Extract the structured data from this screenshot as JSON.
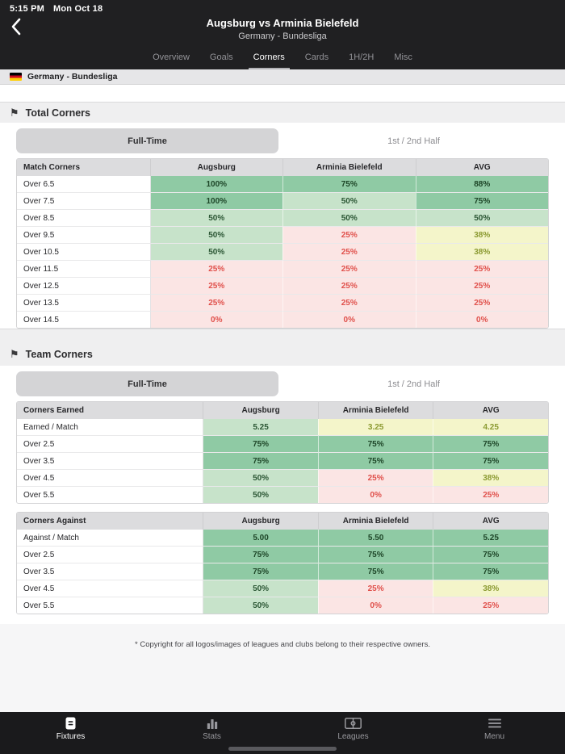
{
  "status_bar": {
    "time": "5:15 PM",
    "date": "Mon Oct 18"
  },
  "header": {
    "title": "Augsburg vs Arminia Bielefeld",
    "subtitle": "Germany - Bundesliga",
    "back_icon": "chevron-left-icon",
    "tabs": [
      {
        "label": "Overview",
        "active": false
      },
      {
        "label": "Goals",
        "active": false
      },
      {
        "label": "Corners",
        "active": true
      },
      {
        "label": "Cards",
        "active": false
      },
      {
        "label": "1H/2H",
        "active": false
      },
      {
        "label": "Misc",
        "active": false
      }
    ]
  },
  "league_bar": {
    "flag_icon": "germany-flag-icon",
    "label": "Germany - Bundesliga"
  },
  "sections": [
    {
      "title": "Total Corners",
      "icon": "flag-icon",
      "toggle": {
        "active_label": "Full-Time",
        "inactive_label": "1st / 2nd Half"
      },
      "tables": [
        {
          "label_col_width": "25%",
          "header": [
            "Match Corners",
            "Augsburg",
            "Arminia Bielefeld",
            "AVG"
          ],
          "rows": [
            {
              "label": "Over 6.5",
              "cells": [
                {
                  "v": "100%",
                  "t": "green"
                },
                {
                  "v": "75%",
                  "t": "green"
                },
                {
                  "v": "88%",
                  "t": "green"
                }
              ]
            },
            {
              "label": "Over 7.5",
              "cells": [
                {
                  "v": "100%",
                  "t": "green"
                },
                {
                  "v": "50%",
                  "t": "lgreen"
                },
                {
                  "v": "75%",
                  "t": "green"
                }
              ]
            },
            {
              "label": "Over 8.5",
              "cells": [
                {
                  "v": "50%",
                  "t": "lgreen"
                },
                {
                  "v": "50%",
                  "t": "lgreen"
                },
                {
                  "v": "50%",
                  "t": "lgreen"
                }
              ]
            },
            {
              "label": "Over 9.5",
              "cells": [
                {
                  "v": "50%",
                  "t": "lgreen"
                },
                {
                  "v": "25%",
                  "t": "pink"
                },
                {
                  "v": "38%",
                  "t": "yellow"
                }
              ]
            },
            {
              "label": "Over 10.5",
              "cells": [
                {
                  "v": "50%",
                  "t": "lgreen"
                },
                {
                  "v": "25%",
                  "t": "pink"
                },
                {
                  "v": "38%",
                  "t": "yellow"
                }
              ]
            },
            {
              "label": "Over 11.5",
              "cells": [
                {
                  "v": "25%",
                  "t": "pink"
                },
                {
                  "v": "25%",
                  "t": "pink"
                },
                {
                  "v": "25%",
                  "t": "pink"
                }
              ]
            },
            {
              "label": "Over 12.5",
              "cells": [
                {
                  "v": "25%",
                  "t": "pink"
                },
                {
                  "v": "25%",
                  "t": "pink"
                },
                {
                  "v": "25%",
                  "t": "pink"
                }
              ]
            },
            {
              "label": "Over 13.5",
              "cells": [
                {
                  "v": "25%",
                  "t": "pink"
                },
                {
                  "v": "25%",
                  "t": "pink"
                },
                {
                  "v": "25%",
                  "t": "pink"
                }
              ]
            },
            {
              "label": "Over 14.5",
              "cells": [
                {
                  "v": "0%",
                  "t": "pink"
                },
                {
                  "v": "0%",
                  "t": "pink"
                },
                {
                  "v": "0%",
                  "t": "pink"
                }
              ]
            }
          ]
        }
      ]
    },
    {
      "title": "Team Corners",
      "icon": "flag-icon",
      "toggle": {
        "active_label": "Full-Time",
        "inactive_label": "1st / 2nd Half"
      },
      "tables": [
        {
          "label_col_width": "35%",
          "header": [
            "Corners Earned",
            "Augsburg",
            "Arminia Bielefeld",
            "AVG"
          ],
          "rows": [
            {
              "label": "Earned / Match",
              "cells": [
                {
                  "v": "5.25",
                  "t": "lgreen"
                },
                {
                  "v": "3.25",
                  "t": "yellow"
                },
                {
                  "v": "4.25",
                  "t": "yellow"
                }
              ]
            },
            {
              "label": "Over 2.5",
              "cells": [
                {
                  "v": "75%",
                  "t": "green"
                },
                {
                  "v": "75%",
                  "t": "green"
                },
                {
                  "v": "75%",
                  "t": "green"
                }
              ]
            },
            {
              "label": "Over 3.5",
              "cells": [
                {
                  "v": "75%",
                  "t": "green"
                },
                {
                  "v": "75%",
                  "t": "green"
                },
                {
                  "v": "75%",
                  "t": "green"
                }
              ]
            },
            {
              "label": "Over 4.5",
              "cells": [
                {
                  "v": "50%",
                  "t": "lgreen"
                },
                {
                  "v": "25%",
                  "t": "pink"
                },
                {
                  "v": "38%",
                  "t": "yellow"
                }
              ]
            },
            {
              "label": "Over 5.5",
              "cells": [
                {
                  "v": "50%",
                  "t": "lgreen"
                },
                {
                  "v": "0%",
                  "t": "pink"
                },
                {
                  "v": "25%",
                  "t": "pink"
                }
              ]
            }
          ]
        },
        {
          "label_col_width": "35%",
          "header": [
            "Corners Against",
            "Augsburg",
            "Arminia Bielefeld",
            "AVG"
          ],
          "rows": [
            {
              "label": "Against / Match",
              "cells": [
                {
                  "v": "5.00",
                  "t": "green"
                },
                {
                  "v": "5.50",
                  "t": "green"
                },
                {
                  "v": "5.25",
                  "t": "green"
                }
              ]
            },
            {
              "label": "Over 2.5",
              "cells": [
                {
                  "v": "75%",
                  "t": "green"
                },
                {
                  "v": "75%",
                  "t": "green"
                },
                {
                  "v": "75%",
                  "t": "green"
                }
              ]
            },
            {
              "label": "Over 3.5",
              "cells": [
                {
                  "v": "75%",
                  "t": "green"
                },
                {
                  "v": "75%",
                  "t": "green"
                },
                {
                  "v": "75%",
                  "t": "green"
                }
              ]
            },
            {
              "label": "Over 4.5",
              "cells": [
                {
                  "v": "50%",
                  "t": "lgreen"
                },
                {
                  "v": "25%",
                  "t": "pink"
                },
                {
                  "v": "38%",
                  "t": "yellow"
                }
              ]
            },
            {
              "label": "Over 5.5",
              "cells": [
                {
                  "v": "50%",
                  "t": "lgreen"
                },
                {
                  "v": "0%",
                  "t": "pink"
                },
                {
                  "v": "25%",
                  "t": "pink"
                }
              ]
            }
          ]
        }
      ]
    }
  ],
  "footer": {
    "copyright": "* Copyright for all logos/images of leagues and clubs belong to their respective owners."
  },
  "nav": {
    "items": [
      {
        "label": "Fixtures",
        "icon": "fixtures-icon",
        "active": true
      },
      {
        "label": "Stats",
        "icon": "stats-icon",
        "active": false
      },
      {
        "label": "Leagues",
        "icon": "leagues-icon",
        "active": false
      },
      {
        "label": "Menu",
        "icon": "menu-icon",
        "active": false
      }
    ]
  },
  "colors": {
    "header_bg": "#202022",
    "nav_bg": "#1a1a1c",
    "cell_green": "#8fcaa4",
    "cell_light_green": "#c7e3ca",
    "cell_pink": "#fbe5e4",
    "cell_yellow": "#f4f5ca",
    "text_green": "#1d4527",
    "text_red": "#e0504b",
    "text_olive": "#8b9a31",
    "table_header_bg": "#dcdcde",
    "button_bg": "#d4d4d6"
  }
}
